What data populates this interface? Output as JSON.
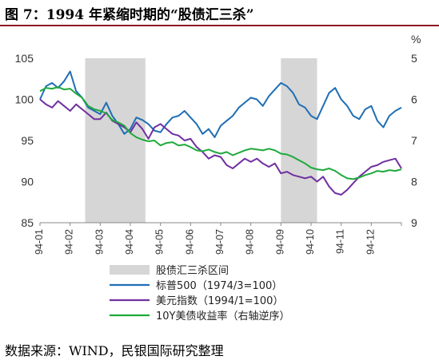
{
  "title": "图 7：1994 年紧缩时期的“股债汇三杀”",
  "source": "数据来源：WIND，民银国际研究整理",
  "chart_data": {
    "type": "line",
    "left_axis": {
      "min": 85,
      "max": 105,
      "ticks": [
        "85",
        "90",
        "95",
        "100",
        "105"
      ]
    },
    "right_axis": {
      "unit": "%",
      "min": 5,
      "max": 9,
      "reversed": true,
      "ticks": [
        "5",
        "6",
        "7",
        "8",
        "9"
      ]
    },
    "x_ticks": [
      "94-01",
      "94-02",
      "94-03",
      "94-04",
      "94-05",
      "94-06",
      "94-07",
      "94-08",
      "94-09",
      "94-10",
      "94-11",
      "94-12"
    ],
    "shaded_periods": [
      {
        "start": 1.5,
        "end": 3.5
      },
      {
        "start": 8.0,
        "end": 9.2
      }
    ],
    "legend": [
      {
        "label": "股债汇三杀区间",
        "kind": "band",
        "color": "#d6d6d6"
      },
      {
        "label": "标普500（1974/3=100）",
        "kind": "line",
        "color": "#1f6eb5"
      },
      {
        "label": "美元指数（1994/1=100）",
        "kind": "line",
        "color": "#7030a0"
      },
      {
        "label": "10Y美债收益率（右轴逆序）",
        "kind": "line",
        "color": "#1faa3c"
      }
    ],
    "series": [
      {
        "name": "标普500（1974/3=100）",
        "axis": "left",
        "color": "#1f6eb5",
        "x": [
          0,
          0.2,
          0.4,
          0.6,
          0.8,
          1.0,
          1.2,
          1.4,
          1.6,
          1.8,
          2.0,
          2.2,
          2.4,
          2.6,
          2.8,
          3.0,
          3.2,
          3.4,
          3.6,
          3.8,
          4.0,
          4.2,
          4.4,
          4.6,
          4.8,
          5.0,
          5.2,
          5.4,
          5.6,
          5.8,
          6.0,
          6.2,
          6.4,
          6.6,
          6.8,
          7.0,
          7.2,
          7.4,
          7.6,
          7.8,
          8.0,
          8.2,
          8.4,
          8.6,
          8.8,
          9.0,
          9.2,
          9.4,
          9.6,
          9.8,
          10.0,
          10.2,
          10.4,
          10.6,
          10.8,
          11.0,
          11.2,
          11.4,
          11.6,
          11.8,
          12.0
        ],
        "values": [
          100.0,
          101.6,
          102.0,
          101.4,
          102.2,
          103.4,
          101.0,
          100.2,
          99.0,
          98.6,
          98.2,
          99.6,
          98.0,
          97.0,
          95.8,
          96.4,
          97.8,
          97.5,
          97.0,
          96.2,
          96.0,
          97.0,
          97.8,
          98.0,
          98.6,
          97.8,
          97.0,
          95.8,
          96.4,
          95.4,
          96.8,
          97.4,
          98.0,
          99.0,
          99.6,
          100.2,
          100.0,
          99.2,
          100.4,
          101.2,
          102.0,
          101.6,
          100.8,
          99.4,
          99.0,
          98.0,
          97.6,
          99.2,
          100.8,
          101.4,
          100.0,
          99.2,
          98.0,
          97.6,
          98.8,
          99.2,
          97.4,
          96.6,
          98.0,
          98.6,
          99.0
        ]
      },
      {
        "name": "美元指数（1994/1=100）",
        "axis": "left",
        "color": "#7030a0",
        "x": [
          0,
          0.2,
          0.4,
          0.6,
          0.8,
          1.0,
          1.2,
          1.4,
          1.6,
          1.8,
          2.0,
          2.2,
          2.4,
          2.6,
          2.8,
          3.0,
          3.2,
          3.4,
          3.6,
          3.8,
          4.0,
          4.2,
          4.4,
          4.6,
          4.8,
          5.0,
          5.2,
          5.4,
          5.6,
          5.8,
          6.0,
          6.2,
          6.4,
          6.6,
          6.8,
          7.0,
          7.2,
          7.4,
          7.6,
          7.8,
          8.0,
          8.2,
          8.4,
          8.6,
          8.8,
          9.0,
          9.2,
          9.4,
          9.6,
          9.8,
          10.0,
          10.2,
          10.4,
          10.6,
          10.8,
          11.0,
          11.2,
          11.4,
          11.6,
          11.8,
          12.0
        ],
        "values": [
          100.0,
          99.4,
          99.0,
          99.8,
          99.2,
          98.6,
          99.4,
          98.8,
          98.2,
          97.6,
          97.6,
          98.4,
          97.4,
          97.0,
          96.6,
          96.0,
          97.2,
          96.4,
          95.2,
          96.6,
          97.0,
          96.4,
          95.8,
          95.6,
          95.0,
          95.2,
          94.2,
          93.6,
          92.8,
          93.2,
          93.0,
          92.0,
          91.6,
          92.2,
          92.8,
          92.4,
          92.8,
          92.2,
          91.8,
          92.2,
          91.0,
          91.2,
          90.8,
          90.6,
          90.4,
          90.6,
          90.0,
          90.6,
          89.4,
          88.6,
          88.4,
          89.0,
          89.8,
          90.6,
          91.2,
          91.8,
          92.0,
          92.4,
          92.6,
          92.8,
          91.6
        ]
      },
      {
        "name": "10Y美债收益率（右轴逆序）",
        "axis": "right",
        "color": "#1faa3c",
        "x": [
          0,
          0.2,
          0.4,
          0.6,
          0.8,
          1.0,
          1.2,
          1.4,
          1.6,
          1.8,
          2.0,
          2.2,
          2.4,
          2.6,
          2.8,
          3.0,
          3.2,
          3.4,
          3.6,
          3.8,
          4.0,
          4.2,
          4.4,
          4.6,
          4.8,
          5.0,
          5.2,
          5.4,
          5.6,
          5.8,
          6.0,
          6.2,
          6.4,
          6.6,
          6.8,
          7.0,
          7.2,
          7.4,
          7.6,
          7.8,
          8.0,
          8.2,
          8.4,
          8.6,
          8.8,
          9.0,
          9.2,
          9.4,
          9.6,
          9.8,
          10.0,
          10.2,
          10.4,
          10.6,
          10.8,
          11.0,
          11.2,
          11.4,
          11.6,
          11.8,
          12.0
        ],
        "values": [
          5.8,
          5.72,
          5.74,
          5.7,
          5.76,
          5.74,
          5.86,
          5.96,
          6.16,
          6.24,
          6.28,
          6.34,
          6.5,
          6.56,
          6.64,
          6.82,
          6.92,
          6.98,
          7.02,
          7.0,
          7.12,
          7.06,
          7.04,
          7.12,
          7.1,
          7.16,
          7.24,
          7.26,
          7.22,
          7.28,
          7.32,
          7.28,
          7.36,
          7.3,
          7.24,
          7.2,
          7.22,
          7.24,
          7.2,
          7.24,
          7.32,
          7.34,
          7.4,
          7.48,
          7.56,
          7.66,
          7.7,
          7.72,
          7.68,
          7.74,
          7.84,
          7.92,
          7.94,
          7.9,
          7.84,
          7.8,
          7.74,
          7.76,
          7.72,
          7.74,
          7.7
        ]
      }
    ]
  }
}
